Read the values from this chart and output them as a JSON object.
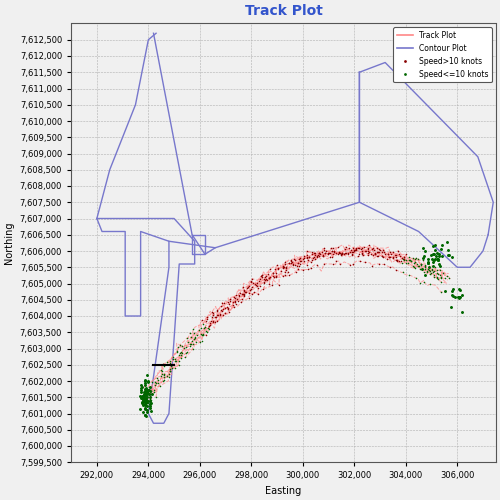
{
  "title": "Track Plot",
  "xlabel": "Easting",
  "ylabel": "Northing",
  "xlim": [
    291000,
    307500
  ],
  "ylim": [
    7599500,
    7613000
  ],
  "xticks": [
    292000,
    294000,
    296000,
    298000,
    300000,
    302000,
    304000,
    306000
  ],
  "yticks": [
    7599500,
    7600000,
    7600500,
    7601000,
    7601500,
    7602000,
    7602500,
    7603000,
    7603500,
    7604000,
    7604500,
    7605000,
    7605500,
    7606000,
    7606500,
    7607000,
    7607500,
    7608000,
    7608500,
    7609000,
    7609500,
    7610000,
    7610500,
    7611000,
    7611500,
    7612000,
    7612500
  ],
  "title_color": "#3355cc",
  "track_color": "#ff8888",
  "contour_color": "#7777cc",
  "speed_high_color": "#880000",
  "speed_low_color": "#006600",
  "bg_color": "#f0f0f0",
  "contour_left_outer": [
    [
      292000,
      7607000
    ],
    [
      291700,
      7606500
    ],
    [
      292200,
      7608500
    ],
    [
      292800,
      7609000
    ],
    [
      293000,
      7609500
    ],
    [
      293500,
      7612500
    ],
    [
      294200,
      7612700
    ]
  ],
  "contour_left_inner_rect": [
    [
      293100,
      7606600
    ],
    [
      293700,
      7606600
    ],
    [
      293700,
      7604000
    ],
    [
      293100,
      7604000
    ],
    [
      293100,
      7606600
    ]
  ],
  "contour_left_main": [
    [
      292000,
      7607000
    ],
    [
      292200,
      7606600
    ],
    [
      293100,
      7606600
    ],
    [
      293100,
      7604000
    ],
    [
      293700,
      7604000
    ],
    [
      293700,
      7606600
    ],
    [
      294800,
      7606300
    ],
    [
      294800,
      7605500
    ],
    [
      294000,
      7601000
    ],
    [
      294200,
      7600700
    ],
    [
      294600,
      7600700
    ],
    [
      294800,
      7601000
    ],
    [
      295200,
      7605600
    ],
    [
      295800,
      7605600
    ],
    [
      295800,
      7606300
    ],
    [
      295000,
      7607000
    ],
    [
      292000,
      7607000
    ]
  ],
  "contour_top_line": [
    [
      294200,
      7612700
    ],
    [
      295700,
      7606500
    ],
    [
      296200,
      7605900
    ],
    [
      296600,
      7606100
    ]
  ],
  "contour_mid_rect": [
    [
      295700,
      7606500
    ],
    [
      296200,
      7606500
    ],
    [
      296200,
      7605900
    ],
    [
      295700,
      7605900
    ],
    [
      295700,
      7606500
    ]
  ],
  "contour_right_upper": [
    [
      302200,
      7611500
    ],
    [
      303200,
      7611800
    ],
    [
      306800,
      7608900
    ],
    [
      307400,
      7607500
    ],
    [
      307200,
      7606500
    ]
  ],
  "contour_right_lower": [
    [
      307200,
      7606500
    ],
    [
      307000,
      7606000
    ],
    [
      306500,
      7605500
    ],
    [
      306000,
      7605500
    ],
    [
      304500,
      7606600
    ],
    [
      302200,
      7607500
    ],
    [
      302200,
      7611500
    ]
  ],
  "figsize": [
    5.0,
    5.0
  ],
  "dpi": 100
}
